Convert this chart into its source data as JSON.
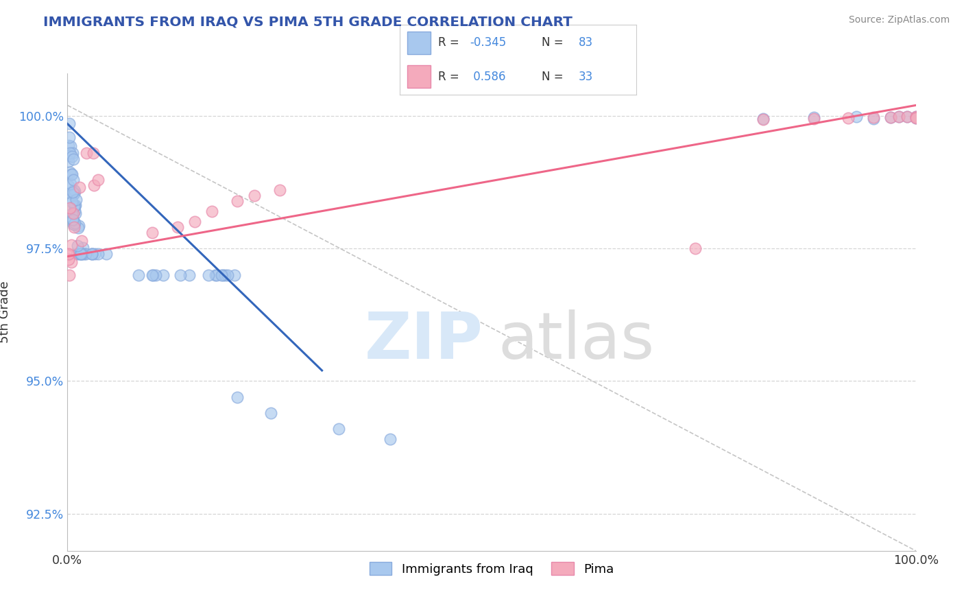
{
  "title": "IMMIGRANTS FROM IRAQ VS PIMA 5TH GRADE CORRELATION CHART",
  "source": "Source: ZipAtlas.com",
  "ylabel": "5th Grade",
  "xlim": [
    0.0,
    1.0
  ],
  "ylim": [
    0.918,
    1.008
  ],
  "yticks": [
    0.925,
    0.95,
    0.975,
    1.0
  ],
  "ytick_labels": [
    "92.5%",
    "95.0%",
    "97.5%",
    "100.0%"
  ],
  "xtick_labels": [
    "0.0%",
    "100.0%"
  ],
  "r_blue": -0.345,
  "n_blue": 83,
  "r_pink": 0.586,
  "n_pink": 33,
  "blue_color": "#A8C8EE",
  "pink_color": "#F4AABC",
  "blue_edge_color": "#88AADD",
  "pink_edge_color": "#E888AA",
  "blue_line_color": "#3366BB",
  "pink_line_color": "#EE6688",
  "ref_line_color": "#BBBBBB",
  "grid_color": "#CCCCCC",
  "title_color": "#3355AA",
  "source_color": "#888888",
  "ylabel_color": "#333333",
  "tick_color_y": "#4488DD",
  "tick_color_x": "#333333",
  "watermark_zip_color": "#D8E8F8",
  "watermark_atlas_color": "#DDDDDD"
}
